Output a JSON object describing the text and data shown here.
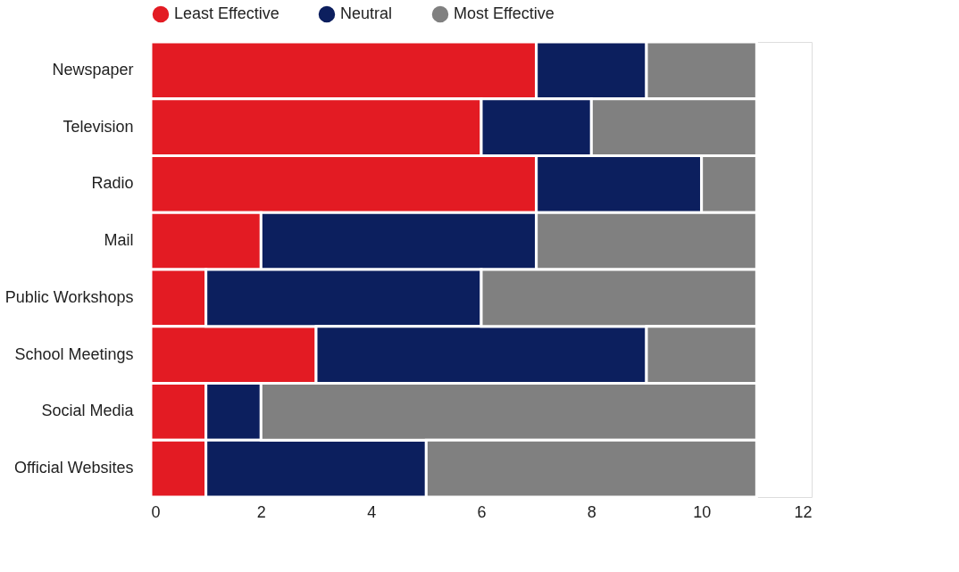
{
  "chart_data": {
    "type": "bar",
    "orientation": "horizontal",
    "stacked": true,
    "categories": [
      "Newspaper",
      "Television",
      "Radio",
      "Mail",
      "Public Workshops",
      "School Meetings",
      "Social Media",
      "Official Websites"
    ],
    "series": [
      {
        "name": "Least Effective",
        "color": "#e31b23",
        "values": [
          7,
          6,
          7,
          2,
          1,
          3,
          1,
          1
        ]
      },
      {
        "name": "Neutral",
        "color": "#0c1f5e",
        "values": [
          2,
          2,
          3,
          5,
          5,
          6,
          1,
          4
        ]
      },
      {
        "name": "Most Effective",
        "color": "#808080",
        "values": [
          2,
          3,
          1,
          4,
          5,
          2,
          9,
          6
        ]
      }
    ],
    "xlim": [
      0,
      12
    ],
    "xticks": [
      0,
      2,
      4,
      6,
      8,
      10,
      12
    ],
    "legend": "top"
  }
}
